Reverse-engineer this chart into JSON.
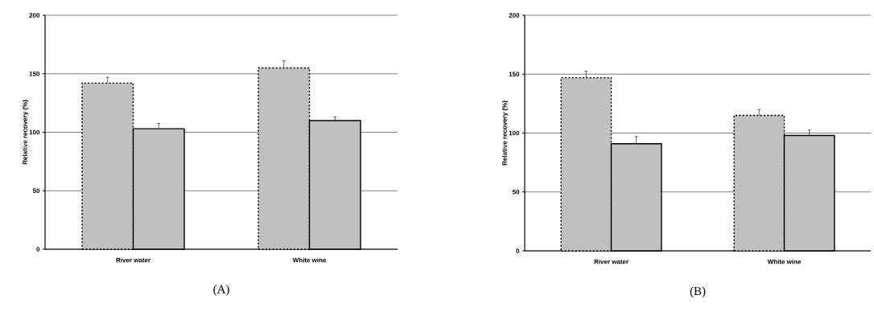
{
  "chart_data": [
    {
      "type": "bar",
      "ylabel": "Relative recovery (%)",
      "categories": [
        "River water",
        "White wine"
      ],
      "ylim": [
        0,
        200
      ],
      "yticks": [
        0,
        50,
        100,
        150,
        200
      ],
      "grid": "y",
      "annotations": [
        "(A)"
      ],
      "series": [
        {
          "color": "#c0c0c0",
          "line_style": "dashed",
          "values": [
            142,
            155
          ],
          "errors": [
            [
              142,
              147
            ],
            [
              155,
              161
            ]
          ]
        },
        {
          "color": "#c0c0c0",
          "line_style": "solid",
          "values": [
            103,
            110
          ],
          "errors": [
            [
              103,
              107.5
            ],
            [
              110,
              113
            ]
          ]
        }
      ]
    },
    {
      "type": "bar",
      "ylabel": "Relative recovery (%)",
      "categories": [
        "River water",
        "White wine"
      ],
      "ylim": [
        0,
        200
      ],
      "yticks": [
        0,
        50,
        100,
        150,
        200
      ],
      "grid": "y",
      "annotations": [
        "(B)"
      ],
      "series": [
        {
          "color": "#c0c0c0",
          "line_style": "dashed",
          "values": [
            147,
            115
          ],
          "errors": [
            [
              147,
              152.5
            ],
            [
              115,
              120
            ]
          ]
        },
        {
          "color": "#c0c0c0",
          "line_style": "solid",
          "values": [
            91,
            98
          ],
          "errors": [
            [
              91,
              97
            ],
            [
              98,
              102.5
            ]
          ]
        }
      ]
    }
  ]
}
